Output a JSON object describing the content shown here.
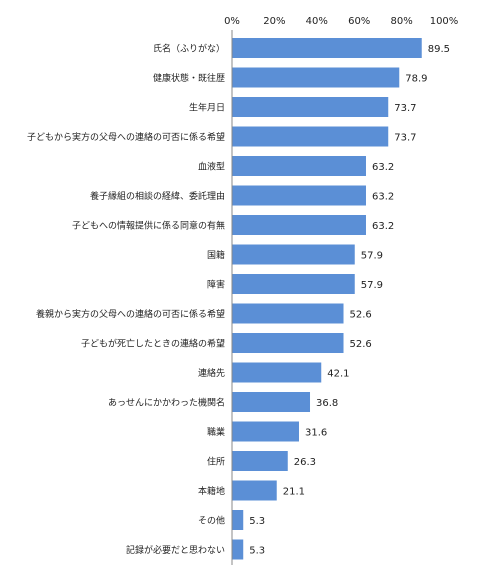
{
  "chart_data": {
    "type": "bar",
    "orientation": "horizontal",
    "categories": [
      "氏名（ふりがな）",
      "健康状態・既往歴",
      "生年月日",
      "子どもから実方の父母への連絡の可否に係る希望",
      "血液型",
      "養子縁組の相談の経緯、委託理由",
      "子どもへの情報提供に係る同意の有無",
      "国籍",
      "障害",
      "養親から実方の父母への連絡の可否に係る希望",
      "子どもが死亡したときの連絡の希望",
      "連絡先",
      "あっせんにかかわった機関名",
      "職業",
      "住所",
      "本籍地",
      "その他",
      "記録が必要だと思わない"
    ],
    "values": [
      89.5,
      78.9,
      73.7,
      73.7,
      63.2,
      63.2,
      63.2,
      57.9,
      57.9,
      52.6,
      52.6,
      42.1,
      36.8,
      31.6,
      26.3,
      21.1,
      5.3,
      5.3
    ],
    "value_labels": [
      "89.5",
      "78.9",
      "73.7",
      "73.7",
      "63.2",
      "63.2",
      "63.2",
      "57.9",
      "57.9",
      "52.6",
      "52.6",
      "42.1",
      "36.8",
      "31.6",
      "26.3",
      "21.1",
      "5.3",
      "5.3"
    ],
    "x_ticks": [
      "0%",
      "20%",
      "40%",
      "60%",
      "80%",
      "100%"
    ],
    "xlim": [
      0,
      100
    ],
    "bar_color": "#5b8fd6",
    "title": "",
    "xlabel": "",
    "ylabel": "",
    "grid": false,
    "legend": "none"
  }
}
